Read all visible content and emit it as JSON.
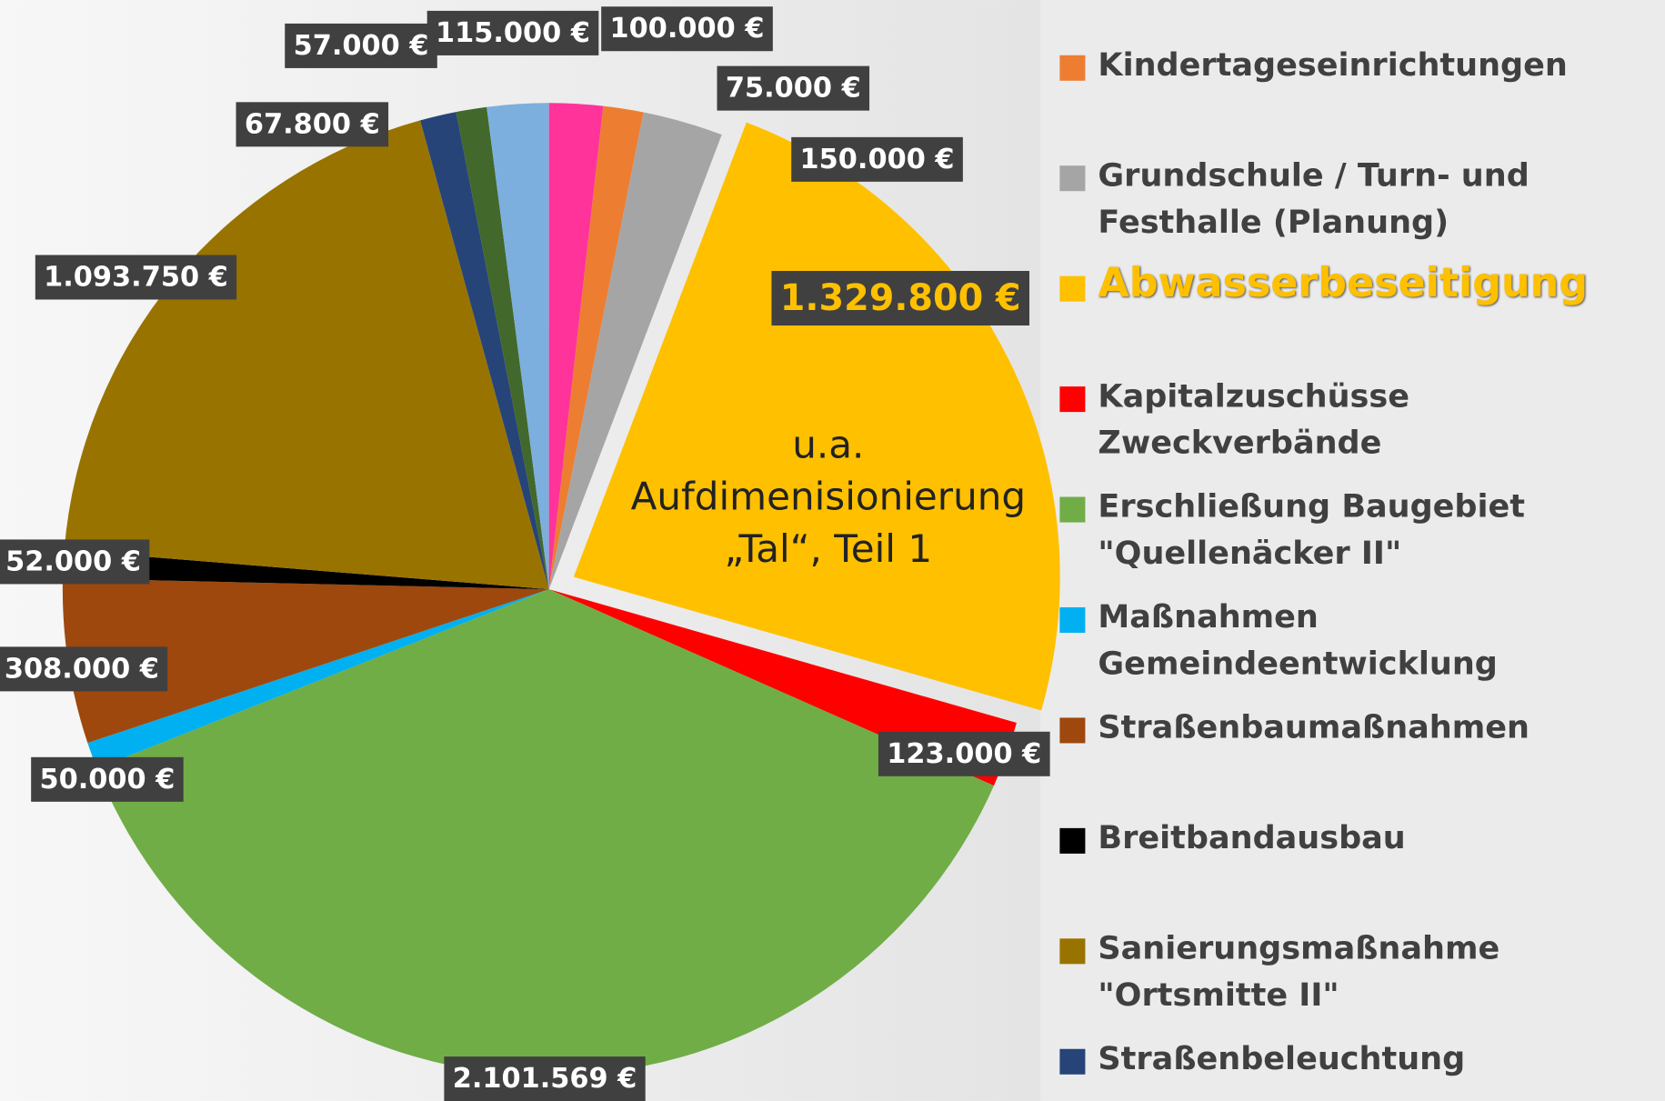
{
  "chart_data": {
    "type": "pie",
    "categories": [
      "Kindertageseinrichtungen",
      "Grundschule / Turn- und Festhalle (Planung)",
      "Abwasserbeseitigung",
      "Kapitalzuschüsse Zweckverbände",
      "Erschließung Baugebiet \"Quellenäcker II\"",
      "Maßnahmen Gemeindeentwicklung",
      "Straßenbaumaßnahmen",
      "Breitbandausbau",
      "Sanierungsmaßnahme \"Ortsmitte II\"",
      "Straßenbeleuchtung",
      null,
      null,
      null
    ],
    "values": [
      75000,
      150000,
      1329800,
      123000,
      2101569,
      50000,
      308000,
      52000,
      1093750,
      67800,
      57000,
      115000,
      100000
    ],
    "value_labels": [
      "75.000 €",
      "150.000 €",
      "1.329.800 €",
      "123.000 €",
      "2.101.569 €",
      "50.000 €",
      "308.000 €",
      "52.000 €",
      "1.093.750 €",
      "67.800 €",
      "57.000 €",
      "115.000 €",
      "100.000 €"
    ],
    "colors": [
      "#ed7d31",
      "#a5a5a5",
      "#ffc000",
      "#ff0000",
      "#70ad47",
      "#00b0f0",
      "#9e480e",
      "#000000",
      "#997300",
      "#264478",
      "#43682b",
      "#7cafdd",
      "#ff3399"
    ],
    "annotation": "u.a. Aufdimenisionierung „Tal“, Teil 1",
    "exploded": 2
  }
}
